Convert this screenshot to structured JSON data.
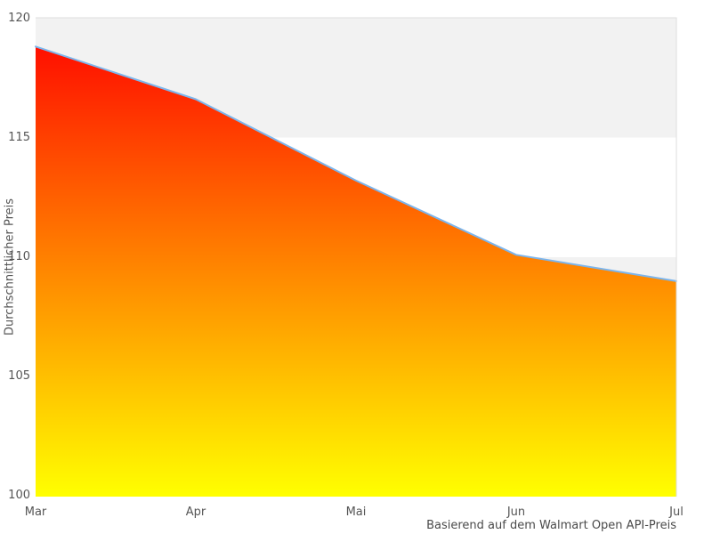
{
  "chart_data": {
    "type": "area",
    "title": "",
    "xlabel": "",
    "ylabel": "Durchschnittlicher Preis",
    "caption": "Basierend auf dem Walmart Open API-Preis",
    "categories": [
      "Mar",
      "Apr",
      "Mai",
      "Jun",
      "Jul"
    ],
    "values": [
      118.8,
      116.6,
      113.2,
      110.1,
      109.0
    ],
    "series_name": "Durchschnittlicher Preis",
    "ylim": [
      100,
      120
    ],
    "yticks": [
      120,
      115,
      110,
      105,
      100
    ],
    "ytick_labels": [
      "120",
      "115",
      "110",
      "105",
      "100"
    ],
    "grid": "alternating-horizontal-bands",
    "legend": "none",
    "colors": {
      "line": "#7cb5ec",
      "gradient_top": "#ff0000",
      "gradient_mid": "#ff8000",
      "gradient_bottom": "#ffff00",
      "band_shaded": "#f2f2f2",
      "band_plain": "#ffffff",
      "frame": "#dddddd",
      "text": "#555555"
    }
  }
}
